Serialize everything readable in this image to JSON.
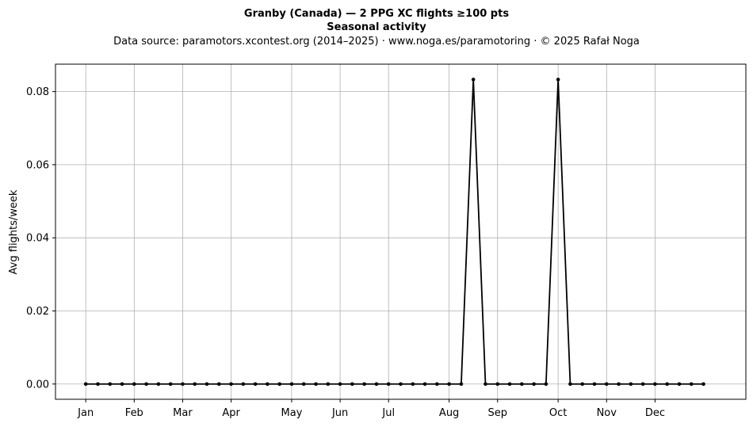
{
  "chart_data": {
    "type": "line",
    "title": "Granby (Canada)  —  2 PPG XC flights ≥100 pts",
    "subtitle": "Seasonal activity",
    "source": "Data source: paramotors.xcontest.org (2014–2025)  ·  www.noga.es/paramotoring  ·  © 2025 Rafał Noga",
    "xlabel": "",
    "ylabel": "Avg flights/week",
    "x_range": [
      -2.5,
      54.5
    ],
    "ylim": [
      -0.00417,
      0.0875
    ],
    "yticks": [
      0.0,
      0.02,
      0.04,
      0.06,
      0.08
    ],
    "ytick_labels": [
      "0.00",
      "0.02",
      "0.04",
      "0.06",
      "0.08"
    ],
    "xticks": [
      0,
      4,
      8,
      12,
      17,
      21,
      25,
      30,
      34,
      39,
      43,
      47
    ],
    "xtick_labels": [
      "Jan",
      "Feb",
      "Mar",
      "Apr",
      "May",
      "Jun",
      "Jul",
      "Aug",
      "Sep",
      "Oct",
      "Nov",
      "Dec"
    ],
    "grid": true,
    "line_color": "#000000",
    "grid_color": "#b0b0b0",
    "series": [
      {
        "x": [
          0,
          1,
          2,
          3,
          4,
          5,
          6,
          7,
          8,
          9,
          10,
          11,
          12,
          13,
          14,
          15,
          16,
          17,
          18,
          19,
          20,
          21,
          22,
          23,
          24,
          25,
          26,
          27,
          28,
          29,
          30,
          31,
          32,
          33,
          34,
          35,
          36,
          37,
          38,
          39,
          40,
          41,
          42,
          43,
          44,
          45,
          46,
          47,
          48,
          49,
          50,
          51
        ],
        "values": [
          0,
          0,
          0,
          0,
          0,
          0,
          0,
          0,
          0,
          0,
          0,
          0,
          0,
          0,
          0,
          0,
          0,
          0,
          0,
          0,
          0,
          0,
          0,
          0,
          0,
          0,
          0,
          0,
          0,
          0,
          0,
          0,
          0.0833,
          0,
          0,
          0,
          0,
          0,
          0,
          0.0833,
          0,
          0,
          0,
          0,
          0,
          0,
          0,
          0,
          0,
          0,
          0,
          0
        ]
      }
    ]
  }
}
